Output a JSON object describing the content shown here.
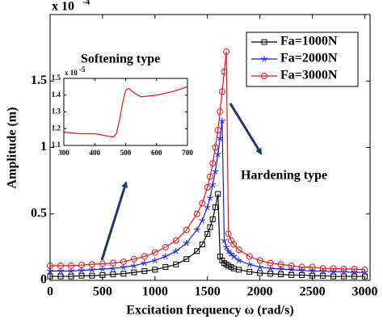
{
  "chart_data": [
    {
      "type": "line",
      "x_label": "Excitation frequency ω (rad/s)",
      "y_label": "Amplitude (m)",
      "y_multiplier": {
        "base": "x 10",
        "exponent": "-4"
      },
      "annotations": [
        "Softening type",
        "Hardening type"
      ],
      "legend": "upper right",
      "xlim": [
        0,
        3050
      ],
      "xticks": [
        0,
        500,
        1000,
        1500,
        2000,
        2500,
        3000
      ],
      "ylim": [
        0,
        2
      ],
      "yticks": [
        0,
        0.5,
        1,
        1.5
      ],
      "x": [
        0,
        100,
        200,
        300,
        400,
        500,
        600,
        700,
        800,
        900,
        1000,
        1100,
        1200,
        1300,
        1400,
        1450,
        1500,
        1525,
        1550,
        1575,
        1600,
        1620,
        1640,
        1660,
        1680,
        1700,
        1725,
        1750,
        1800,
        1900,
        2000,
        2100,
        2200,
        2300,
        2400,
        2500,
        2600,
        2700,
        2800,
        2900,
        3000
      ],
      "series": [
        {
          "name": "Fa=1000N",
          "color": "#000000",
          "marker": "square",
          "values": [
            0.03,
            0.03,
            0.03,
            0.035,
            0.035,
            0.04,
            0.045,
            0.05,
            0.06,
            0.07,
            0.08,
            0.1,
            0.12,
            0.16,
            0.22,
            0.27,
            0.35,
            0.4,
            0.46,
            0.55,
            0.65,
            0.18,
            0.15,
            0.13,
            0.12,
            0.11,
            0.1,
            0.09,
            0.08,
            0.065,
            0.055,
            0.05,
            0.045,
            0.04,
            0.04,
            0.035,
            0.035,
            0.03,
            0.03,
            0.03,
            0.03
          ]
        },
        {
          "name": "Fa=2000N",
          "color": "#1a1aff",
          "marker": "star",
          "values": [
            0.07,
            0.07,
            0.07,
            0.075,
            0.08,
            0.085,
            0.09,
            0.1,
            0.11,
            0.13,
            0.15,
            0.18,
            0.22,
            0.28,
            0.38,
            0.45,
            0.55,
            0.62,
            0.72,
            0.82,
            0.95,
            1.07,
            1.2,
            0.3,
            0.25,
            0.22,
            0.2,
            0.18,
            0.15,
            0.12,
            0.1,
            0.09,
            0.085,
            0.08,
            0.075,
            0.07,
            0.07,
            0.065,
            0.065,
            0.06,
            0.06
          ]
        },
        {
          "name": "Fa=3000N",
          "color": "#e8141c",
          "marker": "circle",
          "values": [
            0.11,
            0.11,
            0.11,
            0.115,
            0.12,
            0.125,
            0.13,
            0.14,
            0.16,
            0.18,
            0.21,
            0.25,
            0.3,
            0.38,
            0.5,
            0.58,
            0.7,
            0.78,
            0.88,
            1.0,
            1.13,
            1.27,
            1.42,
            1.57,
            1.72,
            0.35,
            0.3,
            0.27,
            0.23,
            0.18,
            0.15,
            0.13,
            0.12,
            0.11,
            0.1,
            0.1,
            0.09,
            0.09,
            0.085,
            0.085,
            0.08
          ]
        }
      ]
    },
    {
      "type": "line",
      "y_multiplier": {
        "base": "x 10",
        "exponent": "-5"
      },
      "xlim": [
        300,
        700
      ],
      "xticks": [
        300,
        400,
        500,
        600,
        700
      ],
      "ylim": [
        1.1,
        1.5
      ],
      "yticks": [
        1.1,
        1.2,
        1.3,
        1.4,
        1.5
      ],
      "x": [
        300,
        350,
        400,
        430,
        460,
        470,
        480,
        490,
        500,
        510,
        530,
        550,
        600,
        650,
        700
      ],
      "series": [
        {
          "color": "#e8141c",
          "values": [
            1.18,
            1.17,
            1.17,
            1.16,
            1.15,
            1.17,
            1.25,
            1.35,
            1.43,
            1.44,
            1.41,
            1.39,
            1.4,
            1.42,
            1.45
          ]
        }
      ]
    }
  ]
}
